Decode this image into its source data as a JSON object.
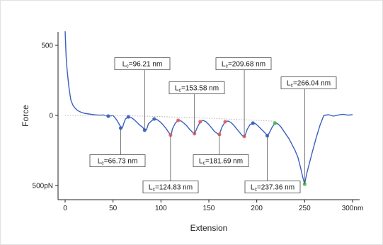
{
  "chart_data": {
    "type": "line",
    "xlabel": "Extension",
    "ylabel": "Force",
    "xlim": [
      0,
      300
    ],
    "ylim": [
      -500,
      600
    ],
    "y_axis_inverted": true,
    "x_ticks": [
      {
        "value": 0,
        "label": "0"
      },
      {
        "value": 50,
        "label": "50"
      },
      {
        "value": 100,
        "label": "100"
      },
      {
        "value": 150,
        "label": "150"
      },
      {
        "value": 200,
        "label": "200"
      },
      {
        "value": 250,
        "label": "250"
      },
      {
        "value": 300,
        "label": "300nm"
      }
    ],
    "y_ticks": [
      {
        "value": 500,
        "label": "500"
      },
      {
        "value": 0,
        "label": "0"
      },
      {
        "value": -500,
        "label": "500pN"
      }
    ],
    "series": [
      {
        "color": "#3a5fbf",
        "x": [
          0,
          1,
          2,
          3,
          4,
          5,
          6,
          8,
          10,
          13,
          16,
          20,
          25,
          30,
          35,
          40,
          45,
          48,
          50,
          53,
          55,
          57,
          59,
          60,
          61,
          63,
          66,
          69,
          72,
          75,
          78,
          81,
          83,
          85,
          86,
          87,
          90,
          93,
          96,
          99,
          102,
          105,
          108,
          110,
          111,
          112,
          115,
          118,
          121,
          124,
          127,
          130,
          133,
          135,
          136,
          138,
          141,
          144,
          147,
          150,
          153,
          156,
          159,
          161,
          162,
          164,
          167,
          170,
          173,
          176,
          179,
          182,
          185,
          187,
          188,
          190,
          193,
          196,
          199,
          202,
          205,
          208,
          210,
          211,
          213,
          216,
          219,
          222,
          225,
          228,
          231,
          234,
          237,
          240,
          243,
          246,
          248,
          250,
          252,
          255,
          258,
          262,
          266,
          270,
          275,
          280,
          285,
          290,
          295,
          300
        ],
        "y": [
          600,
          420,
          330,
          260,
          200,
          150,
          110,
          75,
          55,
          35,
          25,
          15,
          10,
          5,
          2,
          3,
          -5,
          -3,
          0,
          -25,
          -45,
          -70,
          -90,
          -85,
          -60,
          -25,
          -10,
          -15,
          -30,
          -50,
          -70,
          -85,
          -105,
          -100,
          -80,
          -60,
          -40,
          -25,
          -30,
          -45,
          -65,
          -90,
          -120,
          -140,
          -130,
          -95,
          -55,
          -35,
          -40,
          -55,
          -75,
          -100,
          -120,
          -130,
          -115,
          -85,
          -45,
          -35,
          -45,
          -65,
          -90,
          -115,
          -130,
          -135,
          -115,
          -80,
          -45,
          -40,
          -50,
          -70,
          -95,
          -120,
          -145,
          -150,
          -140,
          -100,
          -65,
          -55,
          -60,
          -80,
          -100,
          -120,
          -135,
          -145,
          -125,
          -85,
          -55,
          -60,
          -80,
          -110,
          -140,
          -170,
          -210,
          -250,
          -300,
          -380,
          -440,
          -490,
          -420,
          -340,
          -260,
          -160,
          -70,
          0,
          5,
          -5,
          3,
          8,
          2,
          5
        ]
      },
      {
        "style": "dotted",
        "color": "#b5b5b5",
        "x": [
          0,
          20,
          50,
          100,
          150,
          200,
          220
        ],
        "y": [
          0,
          0,
          0,
          -8,
          -20,
          -35,
          -42
        ]
      }
    ],
    "markers": [
      {
        "x": 45,
        "y": -5,
        "color": "#3a5fbf"
      },
      {
        "x": 58,
        "y": -90,
        "color": "#3a5fbf"
      },
      {
        "x": 66,
        "y": -10,
        "color": "#3a5fbf"
      },
      {
        "x": 83,
        "y": -105,
        "color": "#3a5fbf"
      },
      {
        "x": 93,
        "y": -25,
        "color": "#3a5fbf"
      },
      {
        "x": 110,
        "y": -140,
        "color": "#e06060"
      },
      {
        "x": 118,
        "y": -35,
        "color": "#e06060"
      },
      {
        "x": 135,
        "y": -130,
        "color": "#e06060"
      },
      {
        "x": 141,
        "y": -45,
        "color": "#e06060"
      },
      {
        "x": 161,
        "y": -135,
        "color": "#e06060"
      },
      {
        "x": 167,
        "y": -45,
        "color": "#e06060"
      },
      {
        "x": 187,
        "y": -150,
        "color": "#e06060"
      },
      {
        "x": 196,
        "y": -55,
        "color": "#3a5fbf"
      },
      {
        "x": 211,
        "y": -145,
        "color": "#3a5fbf"
      },
      {
        "x": 219,
        "y": -55,
        "color": "#44bb44"
      },
      {
        "x": 250,
        "y": -490,
        "color": "#44bb44"
      }
    ],
    "annotations": [
      {
        "main": "L",
        "sub": "c",
        "value": "=66.73 nm",
        "x": 58,
        "y": -90
      },
      {
        "main": "L",
        "sub": "c",
        "value": "=96.21 nm",
        "x": 83,
        "y": -105
      },
      {
        "main": "L",
        "sub": "c",
        "value": "=124.83 nm",
        "x": 110,
        "y": -140
      },
      {
        "main": "L",
        "sub": "c",
        "value": "=153.58 nm",
        "x": 135,
        "y": -130
      },
      {
        "main": "L",
        "sub": "c",
        "value": "=181.69 nm",
        "x": 161,
        "y": -135
      },
      {
        "main": "L",
        "sub": "c",
        "value": "=209.68 nm",
        "x": 187,
        "y": -150
      },
      {
        "main": "L",
        "sub": "c",
        "value": "=237.36 nm",
        "x": 211,
        "y": -145
      },
      {
        "main": "L",
        "sub": "c",
        "value": "=266.04 nm",
        "x": 250,
        "y": -490
      }
    ],
    "grid": false,
    "legend": "none"
  }
}
